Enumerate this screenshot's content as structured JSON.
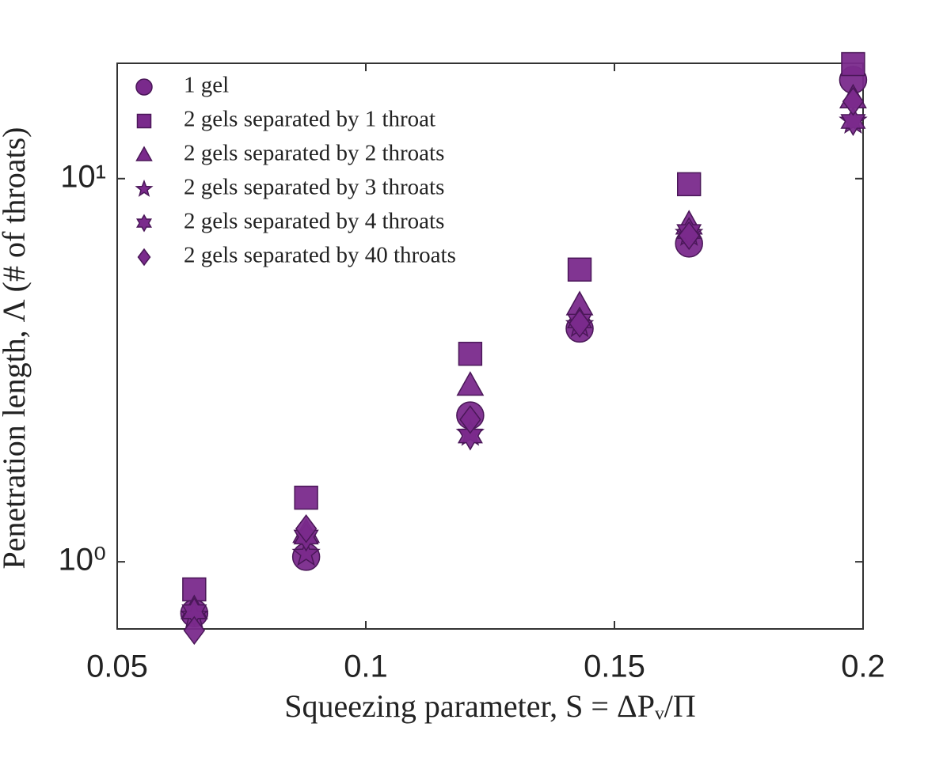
{
  "chart_data": {
    "type": "scatter",
    "xlabel": "Squeezing parameter, S = ΔPᵥ/Π",
    "ylabel": "Penetration length, Λ (# of throats)",
    "x": [
      0.0655,
      0.088,
      0.121,
      0.143,
      0.165,
      0.198
    ],
    "xlim": [
      0.05,
      0.2
    ],
    "xticks": [
      0.05,
      0.1,
      0.15,
      0.2
    ],
    "ylim": [
      0.668,
      20
    ],
    "ylog": true,
    "yticks": [
      {
        "value": 1,
        "label": "10⁰"
      },
      {
        "value": 10,
        "label": "10¹"
      }
    ],
    "legend": "upper left",
    "series": [
      {
        "name": "1 gel",
        "marker": "circle",
        "color": "#7a2a8c",
        "values": [
          0.734,
          1.03,
          2.41,
          4.06,
          6.77,
          18.1
        ]
      },
      {
        "name": "2 gels separated by 1 throat",
        "marker": "square",
        "color": "#7a2a8c",
        "values": [
          0.847,
          1.47,
          3.49,
          5.79,
          9.67,
          19.9
        ]
      },
      {
        "name": "2 gels separated by 2 throats",
        "marker": "triangle",
        "color": "#7a2a8c",
        "values": [
          0.752,
          1.19,
          2.88,
          4.67,
          7.59,
          16.2
        ]
      },
      {
        "name": "2 gels separated by 3 throats",
        "marker": "star",
        "color": "#7a2a8c",
        "values": [
          0.724,
          1.05,
          2.16,
          4.15,
          7.18,
          14.1
        ]
      },
      {
        "name": "2 gels separated by 4 throats",
        "marker": "hexagram",
        "color": "#7a2a8c",
        "values": [
          0.741,
          1.16,
          2.13,
          4.25,
          7.28,
          14.1
        ]
      },
      {
        "name": "2 gels separated by 40 throats",
        "marker": "diamond",
        "color": "#7a2a8c",
        "values": [
          0.662,
          1.22,
          2.35,
          4.19,
          7.1,
          15.9
        ]
      }
    ]
  }
}
